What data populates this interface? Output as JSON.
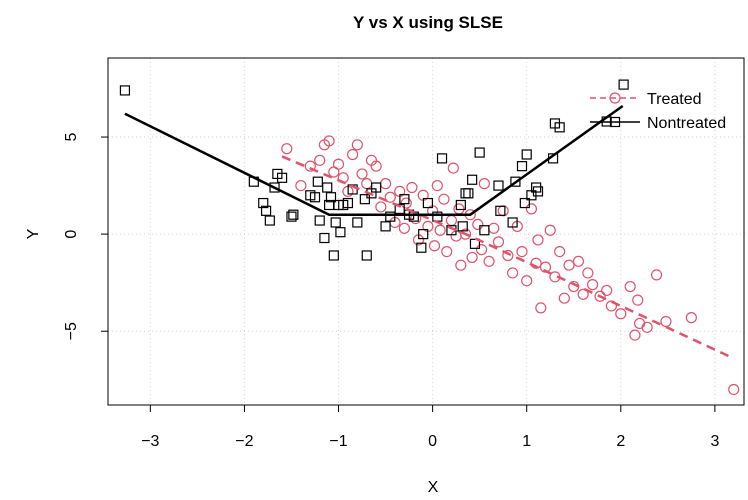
{
  "chart_data": {
    "type": "scatter",
    "title": "Y vs X using SLSE",
    "x_label": "X",
    "y_label": "Y",
    "xlim": [
      -3.45,
      3.32
    ],
    "ylim": [
      -8.8,
      9.07
    ],
    "xticks": [
      {
        "value": -3,
        "label": "−3"
      },
      {
        "value": -2,
        "label": "−2"
      },
      {
        "value": -1,
        "label": "−1"
      },
      0,
      1,
      2,
      3
    ],
    "yticks": [
      {
        "value": -5,
        "label": "−5"
      },
      0,
      5
    ],
    "grid": true,
    "legend": "topright",
    "series": [
      {
        "name": "Treated",
        "color": "#DF536B",
        "marker": "circle",
        "line": "dashed",
        "x": [
          -1.55,
          -1.4,
          -1.3,
          -1.2,
          -1.15,
          -1.1,
          -1.05,
          -1.0,
          -0.95,
          -0.9,
          -0.85,
          -0.8,
          -0.75,
          -0.7,
          -0.65,
          -0.6,
          -0.55,
          -0.5,
          -0.45,
          -0.4,
          -0.35,
          -0.3,
          -0.28,
          -0.22,
          -0.18,
          -0.15,
          -0.1,
          -0.05,
          0.0,
          0.02,
          0.05,
          0.08,
          0.12,
          0.15,
          0.2,
          0.22,
          0.25,
          0.28,
          0.3,
          0.35,
          0.4,
          0.42,
          0.48,
          0.52,
          0.55,
          0.6,
          0.65,
          0.7,
          0.75,
          0.8,
          0.85,
          0.9,
          0.95,
          1.0,
          1.05,
          1.1,
          1.12,
          1.15,
          1.2,
          1.25,
          1.3,
          1.35,
          1.4,
          1.45,
          1.5,
          1.55,
          1.6,
          1.65,
          1.7,
          1.78,
          1.85,
          1.9,
          2.0,
          2.1,
          2.15,
          2.18,
          2.2,
          2.28,
          2.38,
          2.48,
          2.75,
          3.2
        ],
        "y": [
          4.4,
          2.5,
          3.5,
          3.8,
          4.6,
          4.8,
          3.2,
          3.6,
          2.9,
          2.2,
          4.1,
          4.6,
          3.1,
          2.6,
          3.8,
          3.5,
          1.4,
          2.6,
          1.9,
          0.6,
          2.2,
          0.3,
          1.6,
          2.4,
          0.8,
          -0.3,
          2.0,
          0.4,
          1.2,
          -0.6,
          2.5,
          0.2,
          1.8,
          -0.9,
          0.7,
          3.4,
          -0.1,
          1.3,
          -1.6,
          0.0,
          1.0,
          -1.2,
          0.5,
          -0.8,
          2.6,
          -1.4,
          0.3,
          -0.4,
          1.2,
          -1.1,
          -2.0,
          0.4,
          -0.9,
          -2.4,
          1.3,
          -1.5,
          -0.3,
          -3.8,
          -1.7,
          0.2,
          -2.2,
          -0.9,
          -3.3,
          -1.6,
          -2.7,
          -1.4,
          -3.1,
          -2.0,
          -2.6,
          -3.2,
          -2.9,
          -3.7,
          -4.1,
          -2.7,
          -5.2,
          -3.4,
          -4.6,
          -4.8,
          -2.1,
          -4.5,
          -4.3,
          -8.0
        ],
        "fit": {
          "x": [
            -1.6,
            0.4,
            3.2
          ],
          "y": [
            4.0,
            -0.1,
            -6.4
          ]
        }
      },
      {
        "name": "Nontreated",
        "color": "#000000",
        "marker": "square",
        "line": "solid",
        "x": [
          -3.27,
          -1.9,
          -1.8,
          -1.77,
          -1.73,
          -1.65,
          -1.6,
          -1.68,
          -1.5,
          -1.48,
          -1.3,
          -1.25,
          -1.22,
          -1.2,
          -1.15,
          -1.12,
          -1.1,
          -1.08,
          -1.05,
          -1.03,
          -1.0,
          -0.98,
          -0.95,
          -0.9,
          -0.85,
          -0.8,
          -0.72,
          -0.7,
          -0.65,
          -0.6,
          -0.5,
          -0.45,
          -0.35,
          -0.3,
          -0.25,
          -0.2,
          -0.12,
          -0.1,
          -0.05,
          0.05,
          0.1,
          0.2,
          0.3,
          0.32,
          0.35,
          0.38,
          0.42,
          0.45,
          0.5,
          0.55,
          0.7,
          0.72,
          0.85,
          0.88,
          0.95,
          0.98,
          1.0,
          1.05,
          1.1,
          1.12,
          1.28,
          1.3,
          1.35,
          1.85,
          2.03
        ],
        "y": [
          7.4,
          2.7,
          1.6,
          1.2,
          0.7,
          3.1,
          2.9,
          2.4,
          0.9,
          1.0,
          2.0,
          1.9,
          2.7,
          0.7,
          -0.2,
          2.4,
          1.5,
          1.9,
          -1.1,
          0.6,
          1.5,
          0.1,
          1.5,
          1.6,
          2.3,
          0.6,
          1.8,
          -1.1,
          2.1,
          2.4,
          0.4,
          0.9,
          1.3,
          1.8,
          1.0,
          0.9,
          -0.7,
          0.0,
          1.6,
          0.9,
          3.9,
          0.2,
          1.5,
          0.4,
          2.1,
          2.1,
          2.8,
          -0.5,
          4.2,
          0.2,
          2.5,
          1.2,
          0.6,
          2.7,
          3.5,
          1.6,
          4.1,
          2.0,
          2.4,
          2.2,
          3.9,
          5.7,
          5.5,
          5.8,
          7.7
        ],
        "fit": {
          "x": [
            -3.27,
            -1.1,
            0.4,
            2.02
          ],
          "y": [
            6.2,
            1.0,
            1.0,
            6.6
          ]
        }
      }
    ]
  }
}
